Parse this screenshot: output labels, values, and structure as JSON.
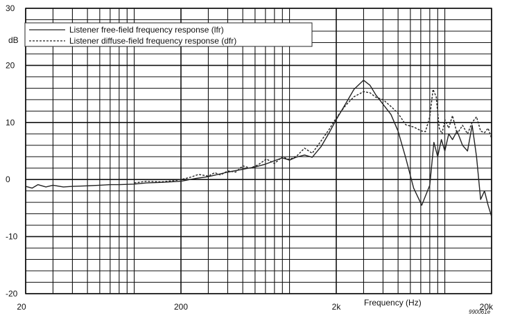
{
  "chart_data": {
    "type": "line",
    "title": "",
    "xlabel": "Frequency (Hz)",
    "ylabel": "dB",
    "x_scale": "log",
    "xlim": [
      20,
      20000
    ],
    "ylim": [
      -20,
      30
    ],
    "grid": true,
    "legend_position": "top-left",
    "x_tick_labels": [
      {
        "value": 20,
        "label": "20"
      },
      {
        "value": 200,
        "label": "200"
      },
      {
        "value": 2000,
        "label": "2k"
      },
      {
        "value": 20000,
        "label": "20k"
      }
    ],
    "y_tick_labels": [
      {
        "value": 30,
        "label": "30"
      },
      {
        "value": 20,
        "label": "20"
      },
      {
        "value": 10,
        "label": "10"
      },
      {
        "value": 0,
        "label": "0"
      },
      {
        "value": -10,
        "label": "-10"
      },
      {
        "value": -20,
        "label": "-20"
      }
    ],
    "series": [
      {
        "name": "Listener free-field frequency response (lfr)",
        "style": "solid",
        "color": "#222222",
        "x": [
          20,
          22,
          24,
          27,
          30,
          35,
          40,
          50,
          60,
          70,
          80,
          100,
          120,
          150,
          200,
          250,
          300,
          400,
          500,
          600,
          700,
          800,
          900,
          1000,
          1100,
          1250,
          1400,
          1600,
          1800,
          2000,
          2300,
          2600,
          3000,
          3300,
          3600,
          4000,
          4500,
          5000,
          5600,
          6300,
          7100,
          8000,
          8500,
          9000,
          9500,
          10000,
          10600,
          11200,
          12000,
          13000,
          14000,
          15000,
          16000,
          17000,
          18000,
          19000,
          20000
        ],
        "y": [
          -1.2,
          -1.5,
          -0.9,
          -1.3,
          -1.0,
          -1.3,
          -1.2,
          -1.1,
          -1.0,
          -0.9,
          -0.9,
          -0.8,
          -0.6,
          -0.5,
          -0.3,
          0.2,
          0.5,
          1.3,
          1.8,
          2.2,
          2.7,
          3.3,
          3.8,
          3.4,
          3.9,
          4.3,
          3.9,
          5.8,
          8.2,
          10.5,
          13.3,
          15.8,
          17.4,
          16.5,
          14.8,
          13.2,
          11.4,
          8.5,
          3.8,
          -1.5,
          -4.5,
          -1.0,
          6.5,
          4.0,
          7.0,
          5.0,
          8.0,
          7.0,
          8.5,
          6.0,
          5.0,
          9.5,
          4.0,
          -3.5,
          -2.0,
          -4.5,
          -6.5
        ]
      },
      {
        "name": "Listener diffuse-field frequency response (dfr)",
        "style": "dashed",
        "color": "#222222",
        "x": [
          100,
          120,
          150,
          180,
          200,
          230,
          260,
          300,
          330,
          360,
          400,
          450,
          500,
          560,
          630,
          710,
          800,
          900,
          1000,
          1120,
          1250,
          1400,
          1600,
          1800,
          2000,
          2300,
          2600,
          3000,
          3300,
          3600,
          4000,
          4500,
          5000,
          5600,
          6300,
          7100,
          7500,
          8000,
          8400,
          8800,
          9200,
          9600,
          10000,
          10600,
          11200,
          12000,
          13000,
          14000,
          15000,
          16000,
          17000,
          18000,
          19000,
          20000
        ],
        "y": [
          -0.6,
          -0.3,
          -0.4,
          -0.2,
          0.0,
          0.4,
          0.9,
          0.6,
          1.2,
          0.8,
          1.5,
          1.3,
          2.4,
          2.0,
          2.6,
          3.6,
          2.8,
          4.0,
          3.5,
          4.2,
          5.5,
          4.6,
          6.8,
          8.8,
          10.8,
          13.0,
          14.5,
          15.4,
          15.2,
          14.4,
          14.0,
          12.8,
          11.6,
          9.6,
          9.2,
          8.5,
          8.4,
          11.0,
          15.8,
          14.5,
          9.0,
          8.0,
          10.5,
          9.0,
          11.2,
          8.0,
          9.5,
          8.0,
          10.0,
          11.0,
          8.5,
          8.2,
          9.0,
          7.2
        ]
      }
    ]
  },
  "figure_code": "990061e"
}
